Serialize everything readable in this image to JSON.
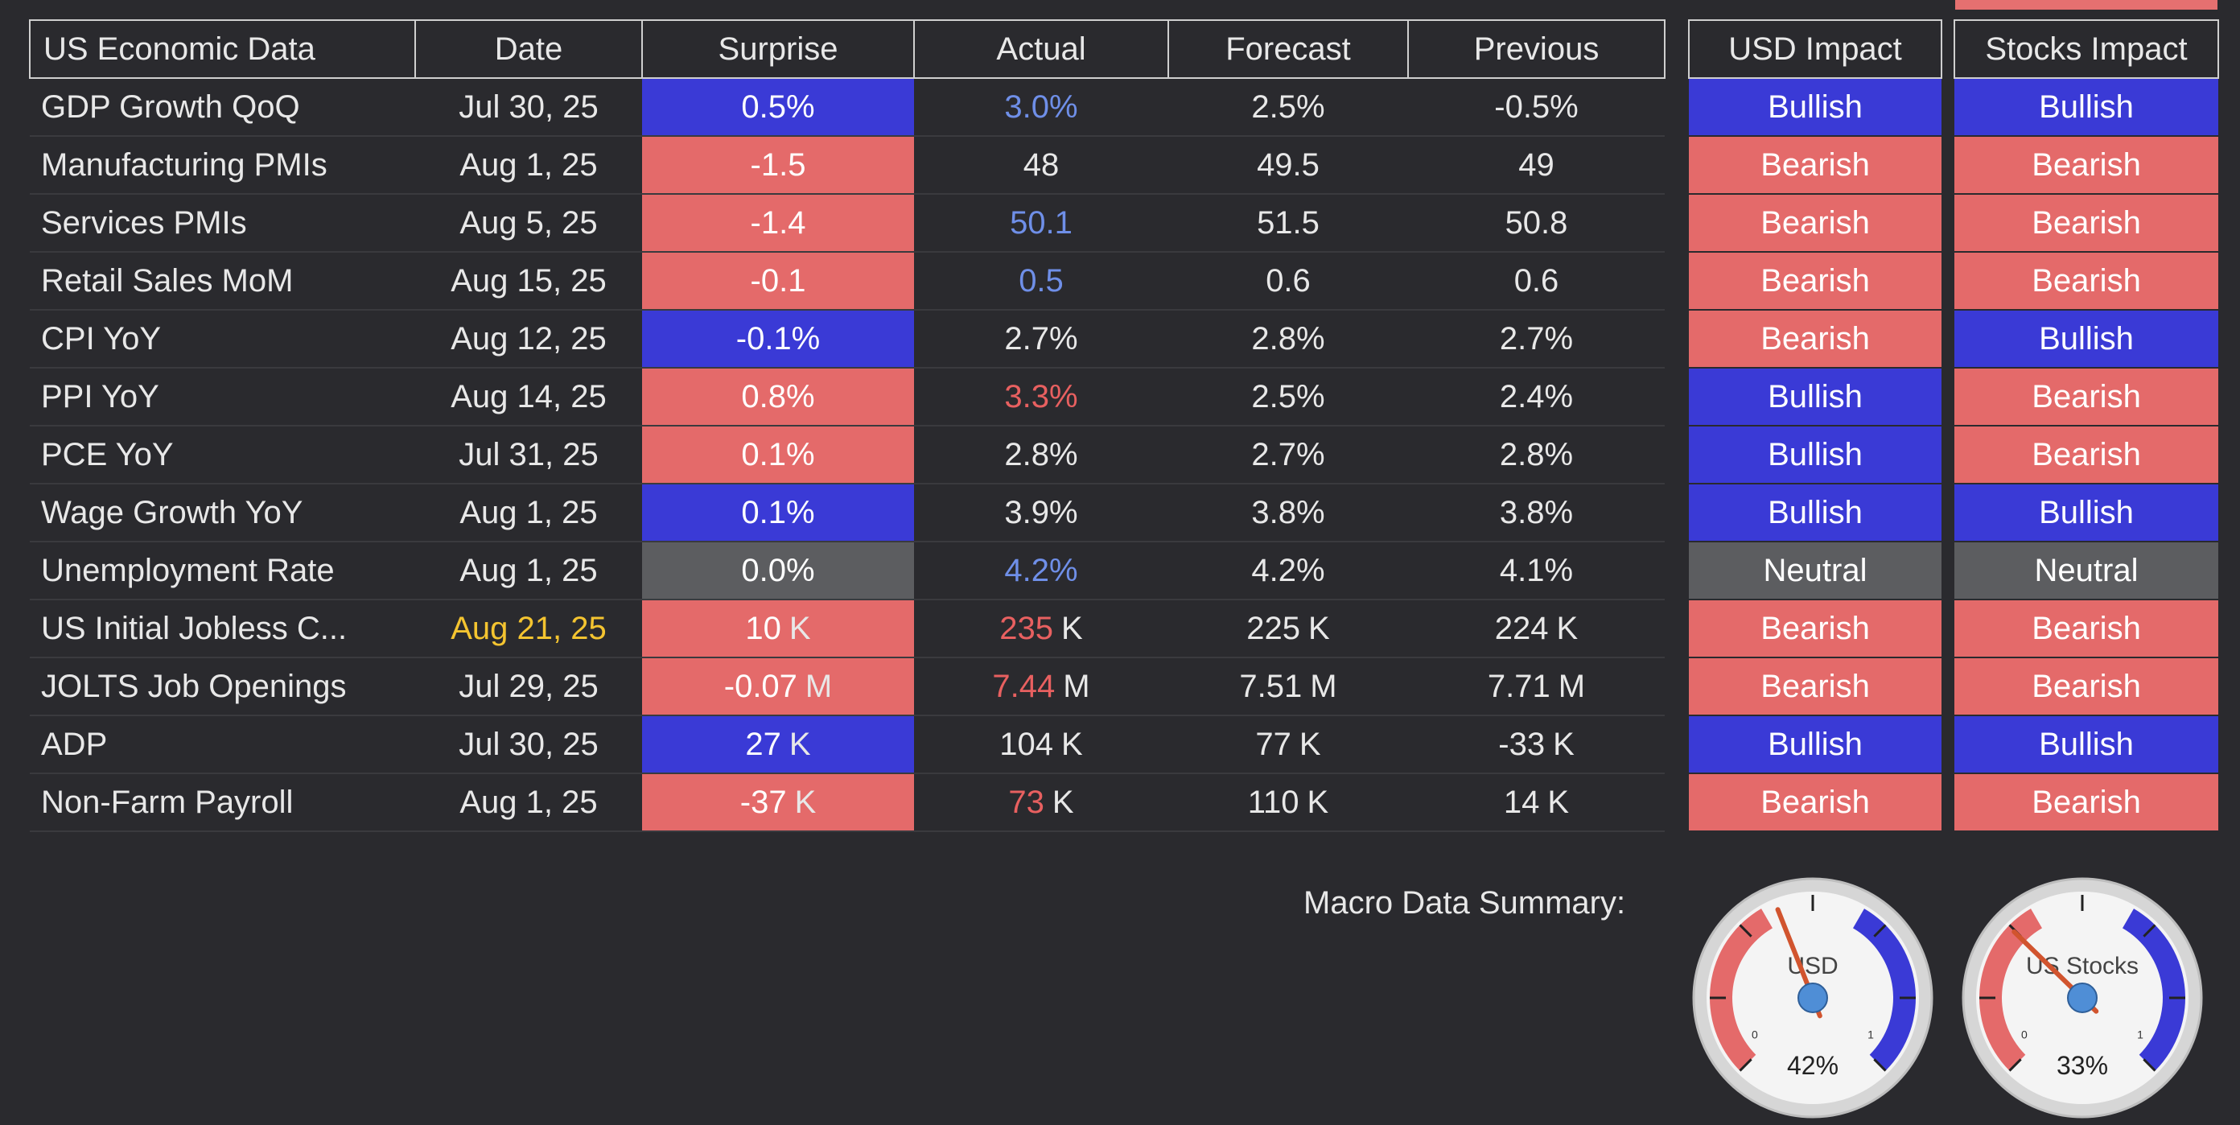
{
  "headers": [
    "US Economic Data",
    "Date",
    "Surprise",
    "Actual",
    "Forecast",
    "Previous"
  ],
  "impact_headers": {
    "usd": "USD Impact",
    "stocks": "Stocks Impact"
  },
  "colors": {
    "bullish": "#3a3ad6",
    "bearish": "#e46a6a",
    "neutral": "#5c5d60",
    "blue_text": "#6f8fe8",
    "red_text": "#e86060",
    "flag_dot": "#f5d020",
    "date_highlight": "#f4c430"
  },
  "rows": [
    {
      "name": "GDP Growth QoQ",
      "date": "Jul 30, 25",
      "surprise": "0.5%",
      "surprise_unit": "",
      "surprise_tone": "bull",
      "actual": "3.0%",
      "actual_unit": "",
      "actual_tone": "blue",
      "forecast": "2.5%",
      "forecast_unit": "",
      "previous": "-0.5%",
      "previous_unit": "",
      "usd": "Bullish",
      "usd_tone": "bull",
      "stocks": "Bullish",
      "stocks_tone": "bull",
      "flag": false
    },
    {
      "name": "Manufacturing PMIs",
      "date": "Aug 1, 25",
      "surprise": "-1.5",
      "surprise_unit": "",
      "surprise_tone": "bear",
      "actual": "48",
      "actual_unit": "",
      "actual_tone": "",
      "forecast": "49.5",
      "forecast_unit": "",
      "previous": "49",
      "previous_unit": "",
      "usd": "Bearish",
      "usd_tone": "bear",
      "stocks": "Bearish",
      "stocks_tone": "bear",
      "flag": false
    },
    {
      "name": "Services PMIs",
      "date": "Aug 5, 25",
      "surprise": "-1.4",
      "surprise_unit": "",
      "surprise_tone": "bear",
      "actual": "50.1",
      "actual_unit": "",
      "actual_tone": "blue",
      "forecast": "51.5",
      "forecast_unit": "",
      "previous": "50.8",
      "previous_unit": "",
      "usd": "Bearish",
      "usd_tone": "bear",
      "stocks": "Bearish",
      "stocks_tone": "bear",
      "flag": false
    },
    {
      "name": "Retail Sales MoM",
      "date": "Aug 15, 25",
      "surprise": "-0.1",
      "surprise_unit": "",
      "surprise_tone": "bear",
      "actual": "0.5",
      "actual_unit": "",
      "actual_tone": "blue",
      "forecast": "0.6",
      "forecast_unit": "",
      "previous": "0.6",
      "previous_unit": "",
      "usd": "Bearish",
      "usd_tone": "bear",
      "stocks": "Bearish",
      "stocks_tone": "bear",
      "flag": false
    },
    {
      "name": "CPI YoY",
      "date": "Aug 12, 25",
      "surprise": "-0.1%",
      "surprise_unit": "",
      "surprise_tone": "bull",
      "actual": "2.7%",
      "actual_unit": "",
      "actual_tone": "",
      "forecast": "2.8%",
      "forecast_unit": "",
      "previous": "2.7%",
      "previous_unit": "",
      "usd": "Bearish",
      "usd_tone": "bear",
      "stocks": "Bullish",
      "stocks_tone": "bull",
      "flag": false
    },
    {
      "name": "PPI YoY",
      "date": "Aug 14, 25",
      "surprise": "0.8%",
      "surprise_unit": "",
      "surprise_tone": "bear",
      "actual": "3.3%",
      "actual_unit": "",
      "actual_tone": "red",
      "forecast": "2.5%",
      "forecast_unit": "",
      "previous": "2.4%",
      "previous_unit": "",
      "usd": "Bullish",
      "usd_tone": "bull",
      "stocks": "Bearish",
      "stocks_tone": "bear",
      "flag": false
    },
    {
      "name": "PCE YoY",
      "date": "Jul 31, 25",
      "surprise": "0.1%",
      "surprise_unit": "",
      "surprise_tone": "bear",
      "actual": "2.8%",
      "actual_unit": "",
      "actual_tone": "",
      "forecast": "2.7%",
      "forecast_unit": "",
      "previous": "2.8%",
      "previous_unit": "",
      "usd": "Bullish",
      "usd_tone": "bull",
      "stocks": "Bearish",
      "stocks_tone": "bear",
      "flag": false
    },
    {
      "name": "Wage Growth YoY",
      "date": "Aug 1, 25",
      "surprise": "0.1%",
      "surprise_unit": "",
      "surprise_tone": "bull",
      "actual": "3.9%",
      "actual_unit": "",
      "actual_tone": "",
      "forecast": "3.8%",
      "forecast_unit": "",
      "previous": "3.8%",
      "previous_unit": "",
      "usd": "Bullish",
      "usd_tone": "bull",
      "stocks": "Bullish",
      "stocks_tone": "bull",
      "flag": false
    },
    {
      "name": "Unemployment Rate",
      "date": "Aug 1, 25",
      "surprise": "0.0%",
      "surprise_unit": "",
      "surprise_tone": "neut",
      "actual": "4.2%",
      "actual_unit": "",
      "actual_tone": "blue",
      "forecast": "4.2%",
      "forecast_unit": "",
      "previous": "4.1%",
      "previous_unit": "",
      "usd": "Neutral",
      "usd_tone": "neut",
      "stocks": "Neutral",
      "stocks_tone": "neut",
      "flag": false
    },
    {
      "name": "US Initial Jobless C...",
      "date": "Aug 21, 25",
      "date_tone": "yellow",
      "surprise": "10",
      "surprise_unit": "K",
      "surprise_tone": "bear",
      "actual": "235",
      "actual_unit": "K",
      "actual_tone": "red",
      "forecast": "225",
      "forecast_unit": "K",
      "previous": "224",
      "previous_unit": "K",
      "usd": "Bearish",
      "usd_tone": "bear",
      "stocks": "Bearish",
      "stocks_tone": "bear",
      "flag": true
    },
    {
      "name": "JOLTS Job Openings",
      "date": "Jul 29, 25",
      "surprise": "-0.07",
      "surprise_unit": "M",
      "surprise_tone": "bear",
      "actual": "7.44",
      "actual_unit": "M",
      "actual_tone": "red",
      "forecast": "7.51",
      "forecast_unit": "M",
      "previous": "7.71",
      "previous_unit": "M",
      "usd": "Bearish",
      "usd_tone": "bear",
      "stocks": "Bearish",
      "stocks_tone": "bear",
      "flag": true
    },
    {
      "name": "ADP",
      "date": "Jul 30, 25",
      "surprise": "27",
      "surprise_unit": "K",
      "surprise_tone": "bull",
      "actual": "104",
      "actual_unit": "K",
      "actual_tone": "",
      "forecast": "77",
      "forecast_unit": "K",
      "previous": "-33",
      "previous_unit": "K",
      "usd": "Bullish",
      "usd_tone": "bull",
      "stocks": "Bullish",
      "stocks_tone": "bull",
      "flag": false
    },
    {
      "name": "Non-Farm Payroll",
      "date": "Aug 1, 25",
      "surprise": "-37",
      "surprise_unit": "K",
      "surprise_tone": "bear",
      "actual": "73",
      "actual_unit": "K",
      "actual_tone": "red",
      "forecast": "110",
      "forecast_unit": "K",
      "previous": "14",
      "previous_unit": "K",
      "usd": "Bearish",
      "usd_tone": "bear",
      "stocks": "Bearish",
      "stocks_tone": "bear",
      "flag": true
    }
  ],
  "summary": {
    "label": "Macro Data Summary:",
    "usd_gauge": {
      "title": "USD",
      "value_pct": 42,
      "value_label": "42%",
      "min_label": "0",
      "max_label": "1"
    },
    "stocks_gauge": {
      "title": "US Stocks",
      "value_pct": 33,
      "value_label": "33%",
      "min_label": "0",
      "max_label": "1"
    }
  }
}
